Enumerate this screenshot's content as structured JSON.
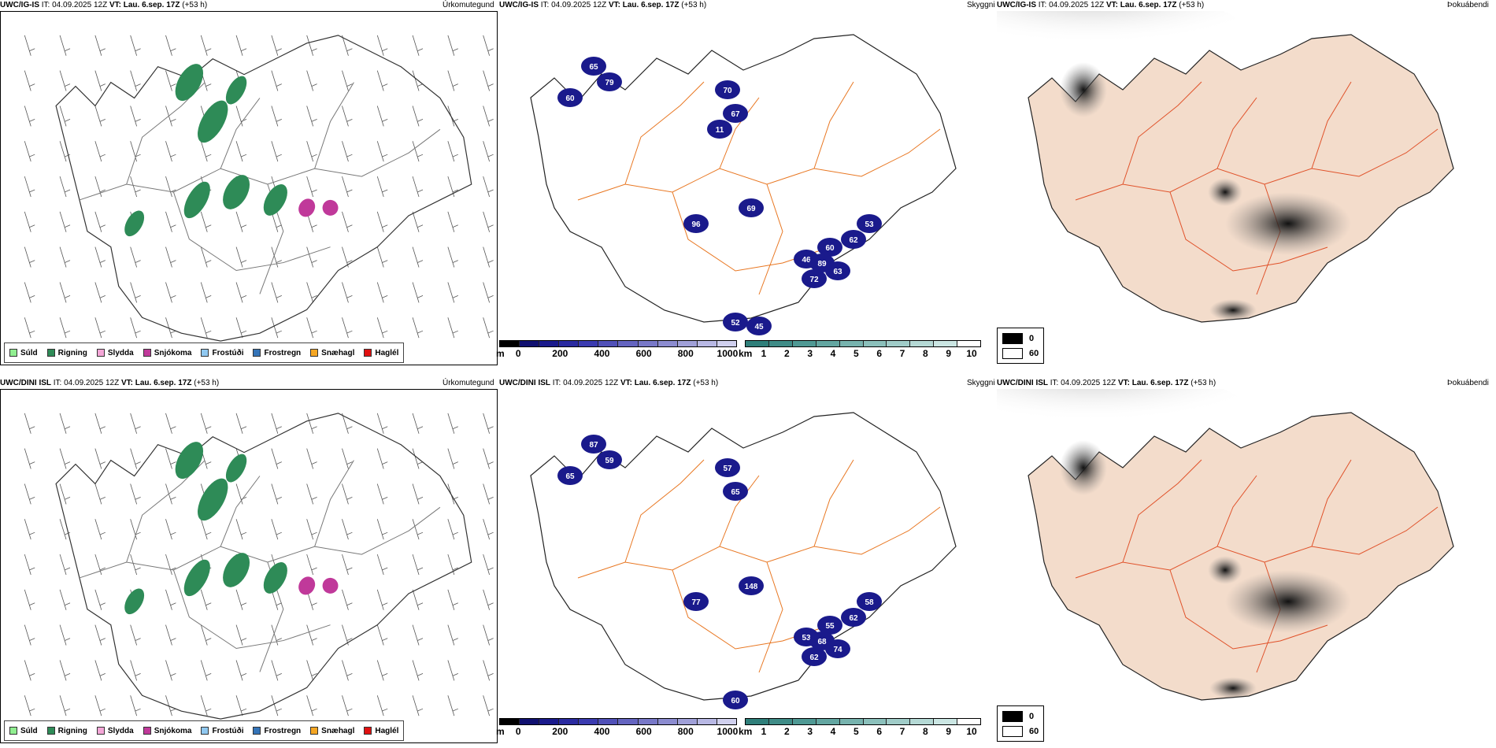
{
  "rows": [
    {
      "precip": {
        "model": "UWC/IG-IS",
        "it_label": "IT:",
        "it_value": "04.09.2025 12Z",
        "vt_label": "VT:",
        "vt_value": "Lau. 6.sep. 17Z",
        "lead": "(+53 h)",
        "right_title": "Úrkomutegund"
      },
      "cloud": {
        "model": "UWC/IG-IS",
        "it_label": "IT:",
        "it_value": "04.09.2025 12Z",
        "vt_label": "VT:",
        "vt_value": "Lau. 6.sep. 17Z",
        "lead": "(+53 h)",
        "right_title": "Skyggni",
        "labels": [
          "65",
          "79",
          "60",
          "70",
          "67",
          "69",
          "96",
          "53",
          "62",
          "60",
          "46",
          "89",
          "63",
          "72",
          "52",
          "45",
          "11"
        ]
      },
      "fog": {
        "model": "UWC/IG-IS",
        "it_label": "IT:",
        "it_value": "04.09.2025 12Z",
        "vt_label": "VT:",
        "vt_value": "Lau. 6.sep. 17Z",
        "lead": "(+53 h)",
        "right_title": "Þokuábendi"
      }
    },
    {
      "precip": {
        "model": "UWC/DINI ISL",
        "it_label": "IT:",
        "it_value": "04.09.2025 12Z",
        "vt_label": "VT:",
        "vt_value": "Lau. 6.sep. 17Z",
        "lead": "(+53 h)",
        "right_title": "Úrkomutegund"
      },
      "cloud": {
        "model": "UWC/DINI ISL",
        "it_label": "IT:",
        "it_value": "04.09.2025 12Z",
        "vt_label": "VT:",
        "vt_value": "Lau. 6.sep. 17Z",
        "lead": "(+53 h)",
        "right_title": "Skyggni",
        "labels": [
          "87",
          "59",
          "65",
          "57",
          "65",
          "148",
          "77",
          "58",
          "62",
          "55",
          "53",
          "68",
          "74",
          "62",
          "60"
        ]
      },
      "fog": {
        "model": "UWC/DINI ISL",
        "it_label": "IT:",
        "it_value": "04.09.2025 12Z",
        "vt_label": "VT:",
        "vt_value": "Lau. 6.sep. 17Z",
        "lead": "(+53 h)",
        "right_title": "Þokuábendi"
      }
    }
  ],
  "precip_legend": [
    {
      "label": "Súld",
      "color": "#90ee90"
    },
    {
      "label": "Rigning",
      "color": "#2e8b57"
    },
    {
      "label": "Slydda",
      "color": "#f4a6d7"
    },
    {
      "label": "Snjókoma",
      "color": "#c0399a"
    },
    {
      "label": "Frostúði",
      "color": "#90c8f0"
    },
    {
      "label": "Frostregn",
      "color": "#3474b8"
    },
    {
      "label": "Snæhagl",
      "color": "#f5a623"
    },
    {
      "label": "Haglél",
      "color": "#e01010"
    }
  ],
  "ceiling_bar": {
    "unit": "m",
    "ticks": [
      "0",
      "200",
      "400",
      "600",
      "800",
      "1000"
    ],
    "colors": [
      "#000000",
      "#101070",
      "#1a1a8c",
      "#2a2aa0",
      "#3b3bb0",
      "#5050b8",
      "#6464c0",
      "#7878c8",
      "#8c8cd0",
      "#a0a0d8",
      "#b8b8e4",
      "#d0d0ee"
    ]
  },
  "visibility_bar": {
    "unit": "km",
    "ticks": [
      "1",
      "2",
      "3",
      "4",
      "5",
      "6",
      "7",
      "8",
      "9",
      "10"
    ],
    "colors": [
      "#2f7f7a",
      "#3f8c87",
      "#4f9994",
      "#63a6a1",
      "#77b3ae",
      "#8bc0bb",
      "#a0ccc8",
      "#b5d9d5",
      "#cbe6e3",
      "#ffffff"
    ]
  },
  "fog_legend": [
    {
      "label": "0",
      "color": "#000000"
    },
    {
      "label": "60",
      "color": "#ffffff"
    }
  ]
}
